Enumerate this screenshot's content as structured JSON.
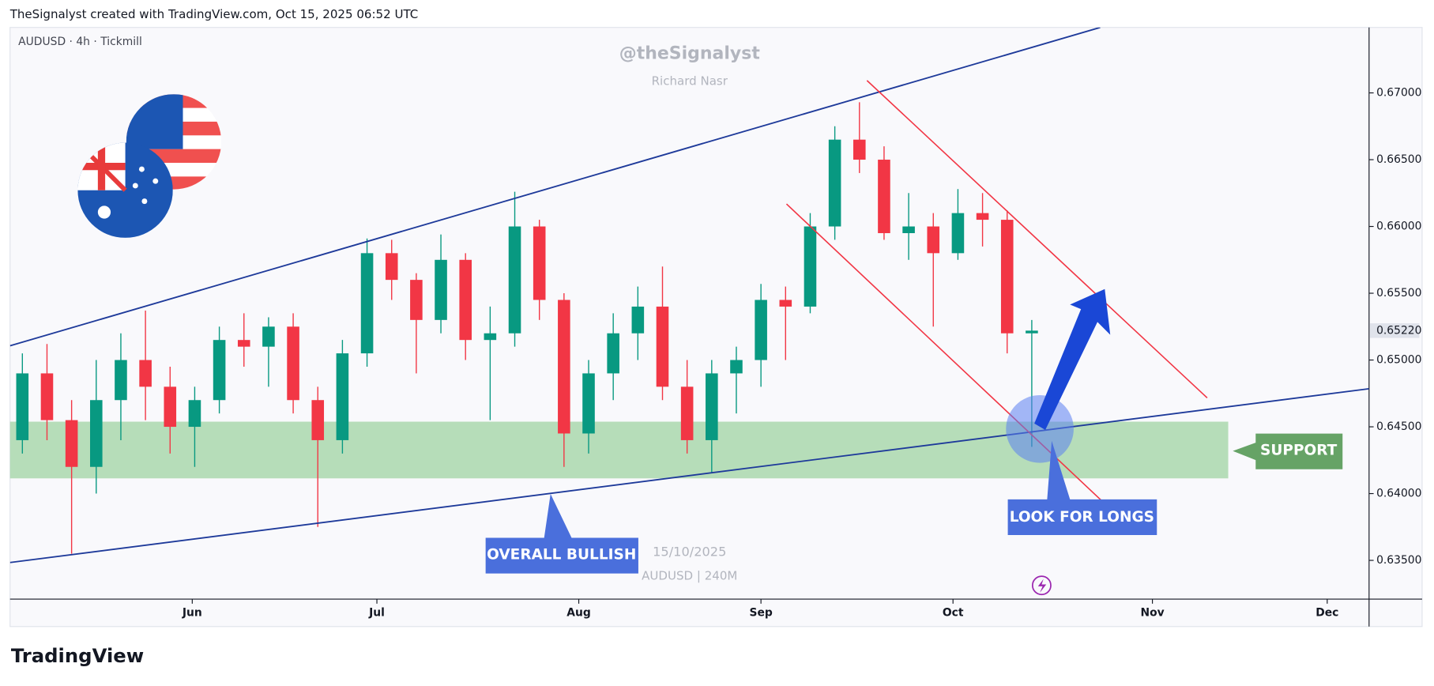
{
  "header": "TheSignalyst created with TradingView.com, Oct 15, 2025 06:52 UTC",
  "footer_logo": "TradingView",
  "chart_data": {
    "type": "candlestick",
    "symbol_info": "AUDUSD · 4h · Tickmill",
    "watermark": "@theSignalyst",
    "watermark_subtitle": "Richard Nasr",
    "stamp_date": "15/10/2025",
    "stamp_symbol": "AUDUSD | 240M",
    "annotations": [
      "SUPPORT",
      "OVERALL BULLISH",
      "LOOK FOR LONGS"
    ],
    "up_color": "#089981",
    "down_color": "#f23645",
    "open": [
      0.644,
      0.649,
      0.6455,
      0.642,
      0.647,
      0.65,
      0.648,
      0.645,
      0.647,
      0.6515,
      0.651,
      0.6525,
      0.647,
      0.644,
      0.6505,
      0.658,
      0.656,
      0.653,
      0.6575,
      0.6515,
      0.652,
      0.66,
      0.6545,
      0.6445,
      0.649,
      0.652,
      0.654,
      0.648,
      0.644,
      0.649,
      0.65,
      0.6545,
      0.654,
      0.66,
      0.6665,
      0.665,
      0.6595,
      0.66,
      0.658,
      0.661,
      0.6605,
      0.652
    ],
    "high": [
      0.6505,
      0.6512,
      0.647,
      0.65,
      0.652,
      0.6537,
      0.6495,
      0.648,
      0.6525,
      0.6535,
      0.6532,
      0.6535,
      0.648,
      0.6515,
      0.6591,
      0.659,
      0.6565,
      0.6594,
      0.658,
      0.654,
      0.6626,
      0.6605,
      0.655,
      0.65,
      0.6535,
      0.6555,
      0.657,
      0.65,
      0.65,
      0.651,
      0.6557,
      0.6555,
      0.661,
      0.6675,
      0.6693,
      0.666,
      0.6625,
      0.661,
      0.6628,
      0.6625,
      0.6612,
      0.653
    ],
    "low": [
      0.643,
      0.644,
      0.6355,
      0.64,
      0.644,
      0.6455,
      0.643,
      0.642,
      0.646,
      0.6495,
      0.648,
      0.646,
      0.6375,
      0.643,
      0.6495,
      0.6545,
      0.649,
      0.652,
      0.65,
      0.6455,
      0.651,
      0.653,
      0.642,
      0.643,
      0.647,
      0.65,
      0.647,
      0.643,
      0.6416,
      0.646,
      0.648,
      0.65,
      0.6535,
      0.659,
      0.664,
      0.659,
      0.6575,
      0.6525,
      0.6575,
      0.6585,
      0.6505,
      0.6435
    ],
    "close": [
      0.649,
      0.6455,
      0.642,
      0.647,
      0.65,
      0.648,
      0.645,
      0.647,
      0.6515,
      0.651,
      0.6525,
      0.647,
      0.644,
      0.6505,
      0.658,
      0.656,
      0.653,
      0.6575,
      0.6515,
      0.652,
      0.66,
      0.6545,
      0.6445,
      0.649,
      0.652,
      0.654,
      0.648,
      0.644,
      0.649,
      0.65,
      0.6545,
      0.654,
      0.66,
      0.6665,
      0.665,
      0.6595,
      0.66,
      0.658,
      0.661,
      0.6605,
      0.652,
      0.6522
    ],
    "last_price": {
      "value": 0.6522,
      "label": "0.65220"
    },
    "xlim": [
      0,
      55.2
    ],
    "xticks": [
      {
        "value": 7.4,
        "label": "Jun"
      },
      {
        "value": 14.9,
        "label": "Jul"
      },
      {
        "value": 23.1,
        "label": "Aug"
      },
      {
        "value": 30.5,
        "label": "Sep"
      },
      {
        "value": 38.3,
        "label": "Oct"
      },
      {
        "value": 46.4,
        "label": "Nov"
      },
      {
        "value": 53.5,
        "label": "Dec"
      }
    ],
    "ylim": [
      0.6321,
      0.6749
    ],
    "yticks": [
      {
        "value": 0.635,
        "label": "0.63500"
      },
      {
        "value": 0.64,
        "label": "0.64000"
      },
      {
        "value": 0.645,
        "label": "0.64500"
      },
      {
        "value": 0.65,
        "label": "0.65000"
      },
      {
        "value": 0.655,
        "label": "0.65500"
      },
      {
        "value": 0.66,
        "label": "0.66000"
      },
      {
        "value": 0.665,
        "label": "0.66500"
      },
      {
        "value": 0.67,
        "label": "0.67000"
      }
    ]
  }
}
